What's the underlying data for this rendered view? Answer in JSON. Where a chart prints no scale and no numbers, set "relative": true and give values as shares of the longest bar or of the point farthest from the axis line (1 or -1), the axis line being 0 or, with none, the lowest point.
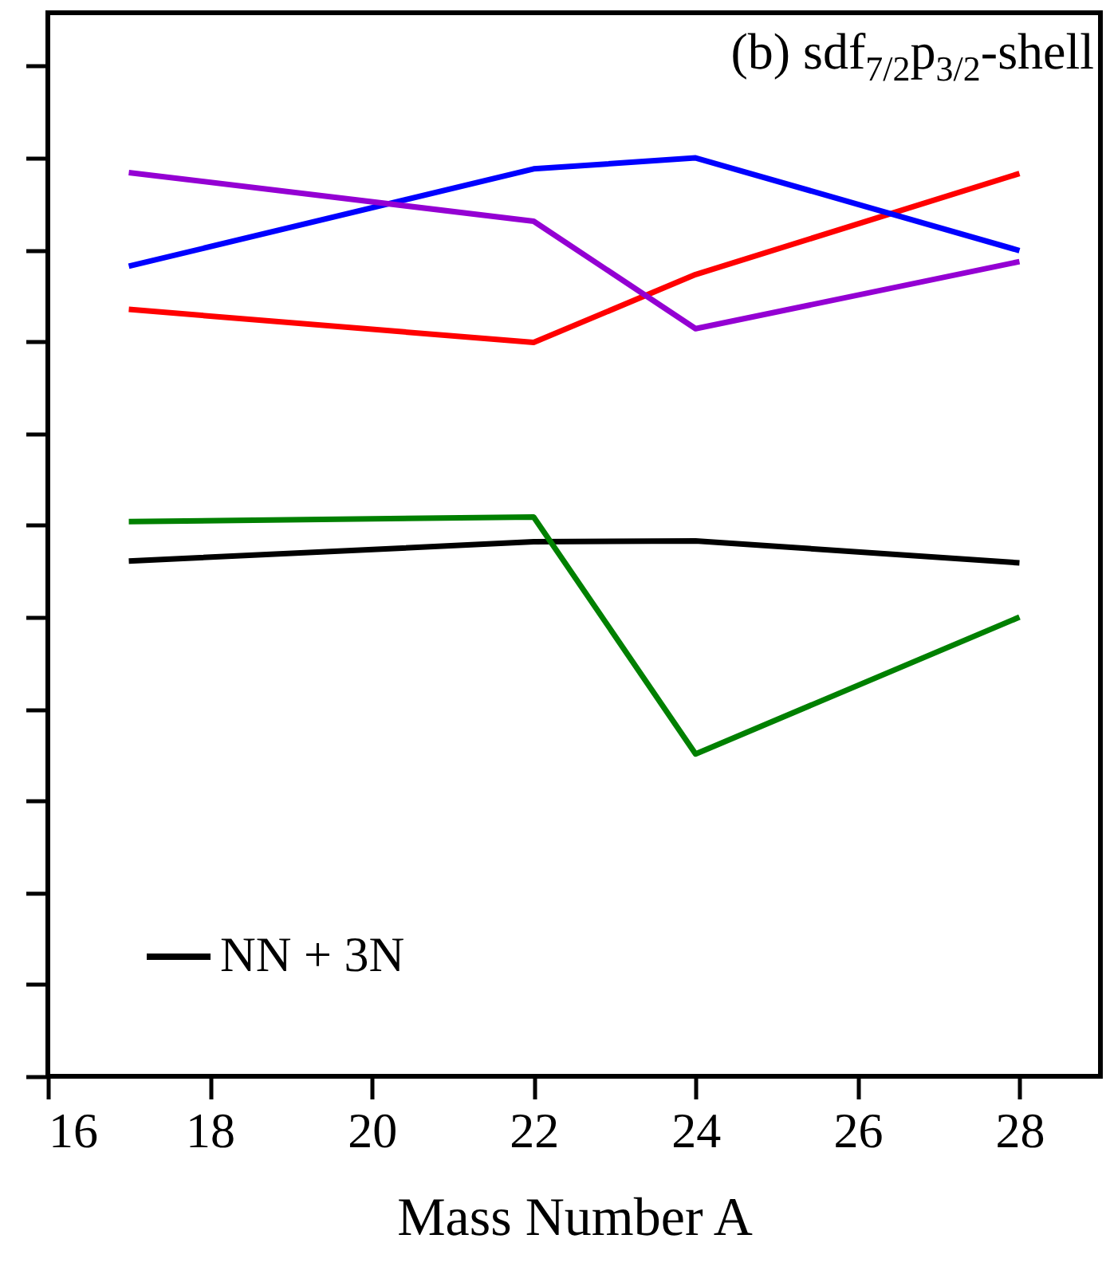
{
  "chart_data": {
    "type": "line",
    "title": "(b) sdf$_{7/2}$p$_{3/2}$-shell",
    "xlabel": "Mass Number A",
    "x": [
      17,
      22,
      24,
      28
    ],
    "xlim": [
      16,
      29
    ],
    "xticks": [
      16,
      18,
      20,
      22,
      24,
      26,
      28
    ],
    "relative": true,
    "tick_labels": "x",
    "legend": "bottom left",
    "series": [
      {
        "name": "NN + 3N",
        "color": "#000000",
        "values": [
          0.561,
          0.582,
          0.583,
          0.559
        ]
      },
      {
        "color": "#008000",
        "values": [
          0.604,
          0.609,
          0.351,
          0.5
        ]
      },
      {
        "color": "#ff0000",
        "values": [
          0.835,
          0.799,
          0.873,
          0.983
        ]
      },
      {
        "color": "#0000ff",
        "values": [
          0.882,
          0.988,
          1,
          0.899
        ]
      },
      {
        "color": "#9400d3",
        "values": [
          0.984,
          0.931,
          0.814,
          0.887
        ]
      }
    ]
  }
}
